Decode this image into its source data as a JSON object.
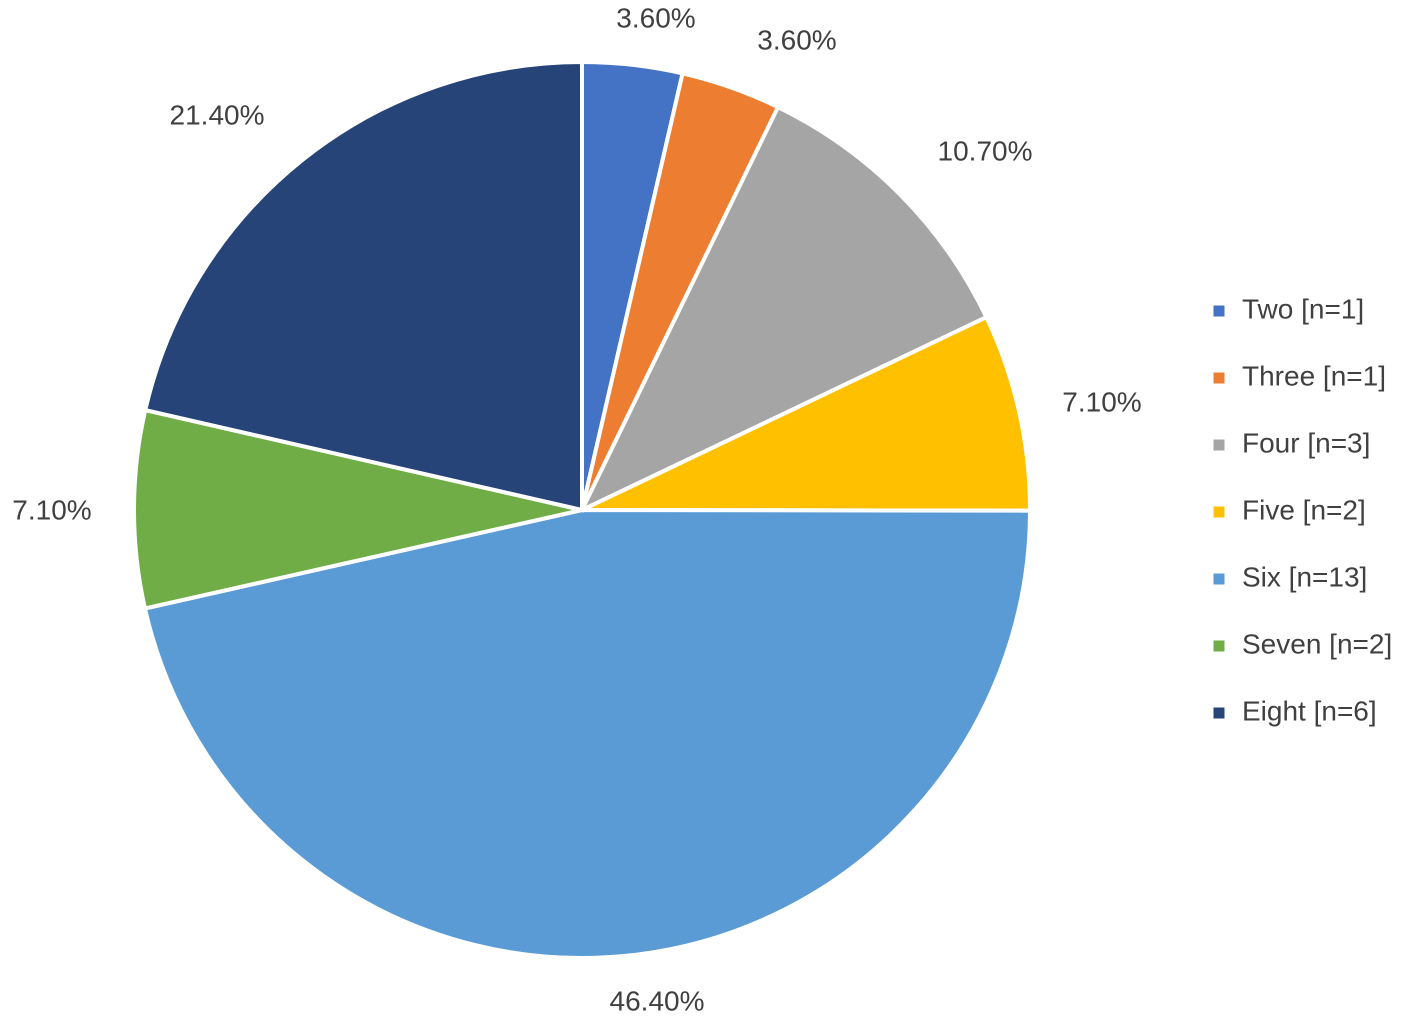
{
  "chart_data": {
    "type": "pie",
    "title": "",
    "start": "12 o'clock, clockwise",
    "legend_position": "right",
    "slices": [
      {
        "label": "Two [n=1]",
        "value": 3.6,
        "n": 1,
        "data_label": "3.60%",
        "color": "#4472C4"
      },
      {
        "label": "Three [n=1]",
        "value": 3.6,
        "n": 1,
        "data_label": "3.60%",
        "color": "#ED7D31"
      },
      {
        "label": "Four [n=3]",
        "value": 10.7,
        "n": 3,
        "data_label": "10.70%",
        "color": "#A5A5A5"
      },
      {
        "label": "Five [n=2]",
        "value": 7.1,
        "n": 2,
        "data_label": "7.10%",
        "color": "#FFC000"
      },
      {
        "label": "Six [n=13]",
        "value": 46.4,
        "n": 13,
        "data_label": "46.40%",
        "color": "#5B9BD5"
      },
      {
        "label": "Seven [n=2]",
        "value": 7.1,
        "n": 2,
        "data_label": "7.10%",
        "color": "#70AD47"
      },
      {
        "label": "Eight [n=6]",
        "value": 21.4,
        "n": 6,
        "data_label": "21.40%",
        "color": "#264478"
      }
    ]
  }
}
